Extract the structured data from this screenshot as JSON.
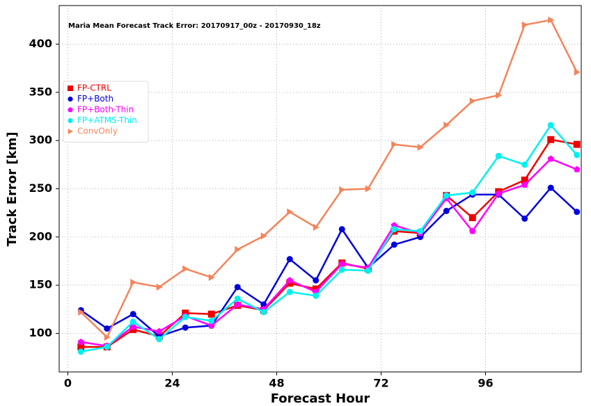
{
  "chart_data": {
    "type": "line",
    "title": "Maria Mean Forecast Track Error: 20170917_00z - 20170930_18z",
    "xlabel": "Forecast Hour",
    "ylabel": "Track Error [km]",
    "x": [
      3,
      9,
      15,
      21,
      27,
      33,
      39,
      45,
      51,
      57,
      63,
      69,
      75,
      81,
      87,
      93,
      99,
      105,
      111,
      117
    ],
    "xlim": [
      -2,
      118
    ],
    "xticks": [
      0,
      24,
      48,
      72,
      96
    ],
    "ylim": [
      60,
      440
    ],
    "yticks": [
      100,
      150,
      200,
      250,
      300,
      350,
      400
    ],
    "grid": true,
    "legend": "upper left",
    "series": [
      {
        "name": "FP-CTRL",
        "color": "#ee0000",
        "marker": "square",
        "values": [
          86,
          86,
          104,
          97,
          121,
          120,
          129,
          124,
          152,
          146,
          173,
          167,
          206,
          204,
          243,
          220,
          247,
          259,
          301,
          296
        ]
      },
      {
        "name": "FP+Both",
        "color": "#0000dd",
        "marker": "circle",
        "values": [
          124,
          105,
          120,
          97,
          106,
          108,
          148,
          130,
          177,
          155,
          208,
          168,
          192,
          200,
          227,
          244,
          244,
          219,
          251,
          226
        ]
      },
      {
        "name": "FP+Both-Thin",
        "color": "#ff00ff",
        "marker": "pentagon",
        "values": [
          91,
          87,
          107,
          102,
          118,
          108,
          130,
          125,
          155,
          143,
          172,
          168,
          212,
          204,
          240,
          206,
          245,
          254,
          281,
          270
        ]
      },
      {
        "name": "FP+ATMS-Thin",
        "color": "#00f0f0",
        "marker": "circle",
        "values": [
          81,
          86,
          112,
          94,
          117,
          113,
          136,
          122,
          143,
          139,
          166,
          165,
          208,
          206,
          243,
          246,
          284,
          275,
          316,
          285
        ]
      },
      {
        "name": "ConvOnly",
        "color": "#f4845a",
        "marker": "triangle-right",
        "values": [
          122,
          96,
          153,
          148,
          167,
          158,
          187,
          201,
          226,
          210,
          249,
          250,
          296,
          293,
          316,
          341,
          347,
          420,
          425,
          371
        ]
      }
    ]
  }
}
